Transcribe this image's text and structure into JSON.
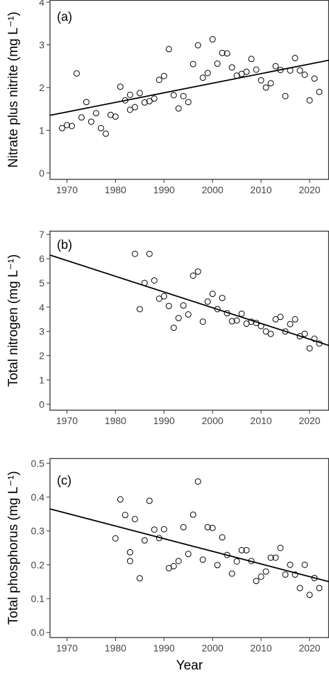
{
  "chart_data": [
    {
      "type": "scatter",
      "panel_label": "(a)",
      "ylabel": "Nitrate plus nitrite (mg L⁻¹)",
      "xlim": [
        1966.5,
        2024
      ],
      "ylim": [
        -0.15,
        4.05
      ],
      "x_ticks": [
        1970,
        1980,
        1990,
        2000,
        2010,
        2020
      ],
      "y_ticks": [
        0,
        1,
        2,
        3,
        4
      ],
      "trend_line": {
        "x": [
          1966.5,
          2024
        ],
        "y": [
          1.35,
          2.64
        ]
      },
      "points": [
        {
          "x": 1969,
          "y": 1.05
        },
        {
          "x": 1970,
          "y": 1.12
        },
        {
          "x": 1971,
          "y": 1.1
        },
        {
          "x": 1972,
          "y": 2.33
        },
        {
          "x": 1973,
          "y": 1.3
        },
        {
          "x": 1974,
          "y": 1.66
        },
        {
          "x": 1975,
          "y": 1.2
        },
        {
          "x": 1976,
          "y": 1.4
        },
        {
          "x": 1977,
          "y": 1.05
        },
        {
          "x": 1978,
          "y": 0.92
        },
        {
          "x": 1979,
          "y": 1.36
        },
        {
          "x": 1980,
          "y": 1.32
        },
        {
          "x": 1981,
          "y": 2.02
        },
        {
          "x": 1982,
          "y": 1.7
        },
        {
          "x": 1983,
          "y": 1.48
        },
        {
          "x": 1983,
          "y": 1.83
        },
        {
          "x": 1984,
          "y": 1.54
        },
        {
          "x": 1985,
          "y": 1.87
        },
        {
          "x": 1986,
          "y": 1.65
        },
        {
          "x": 1987,
          "y": 1.68
        },
        {
          "x": 1988,
          "y": 1.74
        },
        {
          "x": 1989,
          "y": 2.18
        },
        {
          "x": 1990,
          "y": 2.27
        },
        {
          "x": 1991,
          "y": 2.9
        },
        {
          "x": 1992,
          "y": 1.82
        },
        {
          "x": 1993,
          "y": 1.51
        },
        {
          "x": 1994,
          "y": 1.8
        },
        {
          "x": 1995,
          "y": 1.66
        },
        {
          "x": 1996,
          "y": 2.55
        },
        {
          "x": 1997,
          "y": 2.99
        },
        {
          "x": 1998,
          "y": 2.23
        },
        {
          "x": 1999,
          "y": 2.34
        },
        {
          "x": 2000,
          "y": 3.13
        },
        {
          "x": 2001,
          "y": 2.56
        },
        {
          "x": 2002,
          "y": 2.81
        },
        {
          "x": 2003,
          "y": 2.8
        },
        {
          "x": 2004,
          "y": 2.47
        },
        {
          "x": 2005,
          "y": 2.28
        },
        {
          "x": 2006,
          "y": 2.32
        },
        {
          "x": 2007,
          "y": 2.37
        },
        {
          "x": 2008,
          "y": 2.67
        },
        {
          "x": 2009,
          "y": 2.42
        },
        {
          "x": 2010,
          "y": 2.17
        },
        {
          "x": 2011,
          "y": 2.0
        },
        {
          "x": 2012,
          "y": 2.1
        },
        {
          "x": 2013,
          "y": 2.5
        },
        {
          "x": 2014,
          "y": 2.41
        },
        {
          "x": 2015,
          "y": 1.8
        },
        {
          "x": 2016,
          "y": 2.4
        },
        {
          "x": 2017,
          "y": 2.69
        },
        {
          "x": 2018,
          "y": 2.4
        },
        {
          "x": 2019,
          "y": 2.3
        },
        {
          "x": 2020,
          "y": 1.7
        },
        {
          "x": 2021,
          "y": 2.21
        },
        {
          "x": 2022,
          "y": 1.9
        }
      ]
    },
    {
      "type": "scatter",
      "panel_label": "(b)",
      "ylabel": "Total nitrogen (mg L⁻¹)",
      "xlim": [
        1966.5,
        2024
      ],
      "ylim": [
        -0.25,
        7.15
      ],
      "x_ticks": [
        1970,
        1980,
        1990,
        2000,
        2010,
        2020
      ],
      "y_ticks": [
        0,
        1,
        2,
        3,
        4,
        5,
        6,
        7
      ],
      "trend_line": {
        "x": [
          1966.5,
          2024
        ],
        "y": [
          6.15,
          2.42
        ]
      },
      "points": [
        {
          "x": 1984,
          "y": 6.2
        },
        {
          "x": 1985,
          "y": 3.92
        },
        {
          "x": 1986,
          "y": 5.0
        },
        {
          "x": 1987,
          "y": 6.2
        },
        {
          "x": 1988,
          "y": 5.1
        },
        {
          "x": 1989,
          "y": 4.35
        },
        {
          "x": 1990,
          "y": 4.45
        },
        {
          "x": 1991,
          "y": 4.05
        },
        {
          "x": 1992,
          "y": 3.15
        },
        {
          "x": 1993,
          "y": 3.55
        },
        {
          "x": 1994,
          "y": 4.07
        },
        {
          "x": 1995,
          "y": 3.7
        },
        {
          "x": 1996,
          "y": 5.3
        },
        {
          "x": 1997,
          "y": 5.47
        },
        {
          "x": 1998,
          "y": 3.4
        },
        {
          "x": 1999,
          "y": 4.23
        },
        {
          "x": 2000,
          "y": 4.55
        },
        {
          "x": 2001,
          "y": 3.92
        },
        {
          "x": 2002,
          "y": 4.38
        },
        {
          "x": 2003,
          "y": 3.75
        },
        {
          "x": 2004,
          "y": 3.42
        },
        {
          "x": 2005,
          "y": 3.45
        },
        {
          "x": 2006,
          "y": 3.73
        },
        {
          "x": 2007,
          "y": 3.32
        },
        {
          "x": 2008,
          "y": 3.4
        },
        {
          "x": 2009,
          "y": 3.35
        },
        {
          "x": 2010,
          "y": 3.22
        },
        {
          "x": 2011,
          "y": 3.0
        },
        {
          "x": 2012,
          "y": 2.9
        },
        {
          "x": 2013,
          "y": 3.5
        },
        {
          "x": 2014,
          "y": 3.6
        },
        {
          "x": 2015,
          "y": 3.0
        },
        {
          "x": 2016,
          "y": 3.3
        },
        {
          "x": 2017,
          "y": 3.5
        },
        {
          "x": 2018,
          "y": 2.8
        },
        {
          "x": 2019,
          "y": 2.9
        },
        {
          "x": 2020,
          "y": 2.3
        },
        {
          "x": 2021,
          "y": 2.7
        },
        {
          "x": 2022,
          "y": 2.5
        }
      ]
    },
    {
      "type": "scatter",
      "panel_label": "(c)",
      "ylabel": "Total phosphorus (mg L⁻¹)",
      "xlim": [
        1966.5,
        2024
      ],
      "ylim": [
        -0.015,
        0.515
      ],
      "x_ticks": [
        1970,
        1980,
        1990,
        2000,
        2010,
        2020
      ],
      "y_ticks": [
        0.0,
        0.1,
        0.2,
        0.3,
        0.4,
        0.5
      ],
      "y_tick_labels": [
        "0.0",
        "0.1",
        "0.2",
        "0.3",
        "0.4",
        "0.5"
      ],
      "xlabel": "Year",
      "trend_line": {
        "x": [
          1966.5,
          2024
        ],
        "y": [
          0.365,
          0.15
        ]
      },
      "points": [
        {
          "x": 1980,
          "y": 0.278
        },
        {
          "x": 1981,
          "y": 0.393
        },
        {
          "x": 1982,
          "y": 0.347
        },
        {
          "x": 1983,
          "y": 0.237
        },
        {
          "x": 1983,
          "y": 0.211
        },
        {
          "x": 1984,
          "y": 0.335
        },
        {
          "x": 1985,
          "y": 0.16
        },
        {
          "x": 1986,
          "y": 0.272
        },
        {
          "x": 1987,
          "y": 0.389
        },
        {
          "x": 1988,
          "y": 0.304
        },
        {
          "x": 1989,
          "y": 0.279
        },
        {
          "x": 1990,
          "y": 0.305
        },
        {
          "x": 1991,
          "y": 0.19
        },
        {
          "x": 1992,
          "y": 0.196
        },
        {
          "x": 1993,
          "y": 0.211
        },
        {
          "x": 1994,
          "y": 0.311
        },
        {
          "x": 1995,
          "y": 0.232
        },
        {
          "x": 1996,
          "y": 0.348
        },
        {
          "x": 1997,
          "y": 0.446
        },
        {
          "x": 1998,
          "y": 0.215
        },
        {
          "x": 1999,
          "y": 0.311
        },
        {
          "x": 2000,
          "y": 0.309
        },
        {
          "x": 2001,
          "y": 0.199
        },
        {
          "x": 2002,
          "y": 0.281
        },
        {
          "x": 2003,
          "y": 0.229
        },
        {
          "x": 2004,
          "y": 0.174
        },
        {
          "x": 2005,
          "y": 0.21
        },
        {
          "x": 2006,
          "y": 0.243
        },
        {
          "x": 2007,
          "y": 0.243
        },
        {
          "x": 2008,
          "y": 0.211
        },
        {
          "x": 2009,
          "y": 0.152
        },
        {
          "x": 2010,
          "y": 0.165
        },
        {
          "x": 2011,
          "y": 0.18
        },
        {
          "x": 2012,
          "y": 0.221
        },
        {
          "x": 2013,
          "y": 0.221
        },
        {
          "x": 2014,
          "y": 0.25
        },
        {
          "x": 2015,
          "y": 0.171
        },
        {
          "x": 2016,
          "y": 0.2
        },
        {
          "x": 2017,
          "y": 0.171
        },
        {
          "x": 2018,
          "y": 0.131
        },
        {
          "x": 2019,
          "y": 0.2
        },
        {
          "x": 2020,
          "y": 0.111
        },
        {
          "x": 2021,
          "y": 0.161
        },
        {
          "x": 2022,
          "y": 0.131
        }
      ]
    }
  ]
}
